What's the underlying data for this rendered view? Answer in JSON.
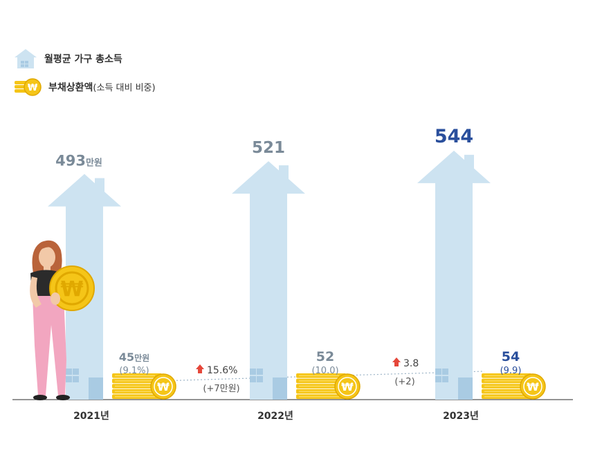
{
  "legend": {
    "income_label": "월평균 가구 총소득",
    "debt_label_main": "부채상환액",
    "debt_label_sub": "(소득 대비 비중)"
  },
  "colors": {
    "house": "#cde3f1",
    "house_dark": "#a9cbe3",
    "coin": "#f5c518",
    "coin_dark": "#e0a800",
    "gray_value": "#7a8a98",
    "blue_value": "#2a4f9c",
    "arrow_red": "#e5473a"
  },
  "chart_data": {
    "type": "bar",
    "categories": [
      "2021년",
      "2022년",
      "2023년"
    ],
    "series": [
      {
        "name": "월평균 가구 총소득",
        "values": [
          493,
          521,
          544
        ],
        "labels": [
          "493",
          "521",
          "544"
        ],
        "unit_label": "만원"
      },
      {
        "name": "부채상환액",
        "values": [
          45,
          52,
          54
        ],
        "labels": [
          "45",
          "52",
          "54"
        ],
        "unit_label": "만원",
        "ratio_labels": [
          "(9.1%)",
          "(10.0)",
          "(9.9)"
        ]
      }
    ],
    "changes": [
      {
        "pct": "15.6%",
        "abs": "(+7만원)"
      },
      {
        "pct": "3.8",
        "abs": "(+2)"
      }
    ]
  }
}
